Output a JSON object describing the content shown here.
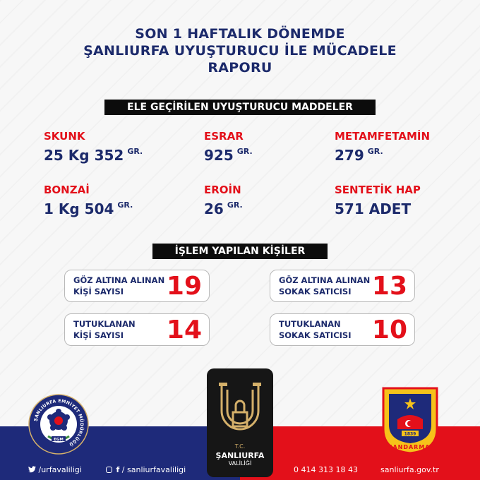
{
  "header": {
    "title_lines": [
      "SON 1 HAFTALIK DÖNEMDE",
      "ŞANLIURFA UYUŞTURUCU İLE MÜCADELE",
      "RAPORU"
    ]
  },
  "seized_section": {
    "heading": "ELE GEÇİRİLEN UYUŞTURUCU MADDELER",
    "items": [
      {
        "name": "SKUNK",
        "amount": "25 Kg 352",
        "unit": "GR."
      },
      {
        "name": "ESRAR",
        "amount": "925",
        "unit": "GR."
      },
      {
        "name": "METAMFETAMİN",
        "amount": "279",
        "unit": "GR."
      },
      {
        "name": "BONZAİ",
        "amount": "1 Kg 504",
        "unit": "GR."
      },
      {
        "name": "EROİN",
        "amount": "26",
        "unit": "GR."
      },
      {
        "name": "SENTETİK HAP",
        "amount": "571 ADET",
        "unit": ""
      }
    ]
  },
  "people_section": {
    "heading": "İŞLEM YAPILAN KİŞİLER",
    "stats": [
      {
        "label_line1": "GÖZ ALTINA ALINAN",
        "label_line2": "KİŞİ SAYISI",
        "value": "19"
      },
      {
        "label_line1": "GÖZ ALTINA ALINAN",
        "label_line2": "SOKAK SATICISI",
        "value": "13"
      },
      {
        "label_line1": "TUTUKLANAN",
        "label_line2": "KİŞİ SAYISI",
        "value": "14"
      },
      {
        "label_line1": "TUTUKLANAN",
        "label_line2": "SOKAK SATICISI",
        "value": "10"
      }
    ]
  },
  "logos": {
    "egm_ring_text": "ŞANLIURFA EMNİYET MÜDÜRLÜĞÜ",
    "egm_short": "EGM",
    "valilik_tc": "T.C.",
    "valilik_city": "ŞANLIURFA",
    "valilik_sub": "VALİLİĞİ",
    "jandarma_text": "JANDARMA",
    "jandarma_year": "1839"
  },
  "footer": {
    "twitter": "/urfavaliligi",
    "social": "/ sanliurfavaliligi",
    "phone": "0 414 313 18 43",
    "website": "sanliurfa.gov.tr"
  },
  "colors": {
    "navy": "#1c2a6b",
    "red": "#e3101a",
    "band_blue": "#1e2a7a",
    "gold": "#d4b06a"
  }
}
